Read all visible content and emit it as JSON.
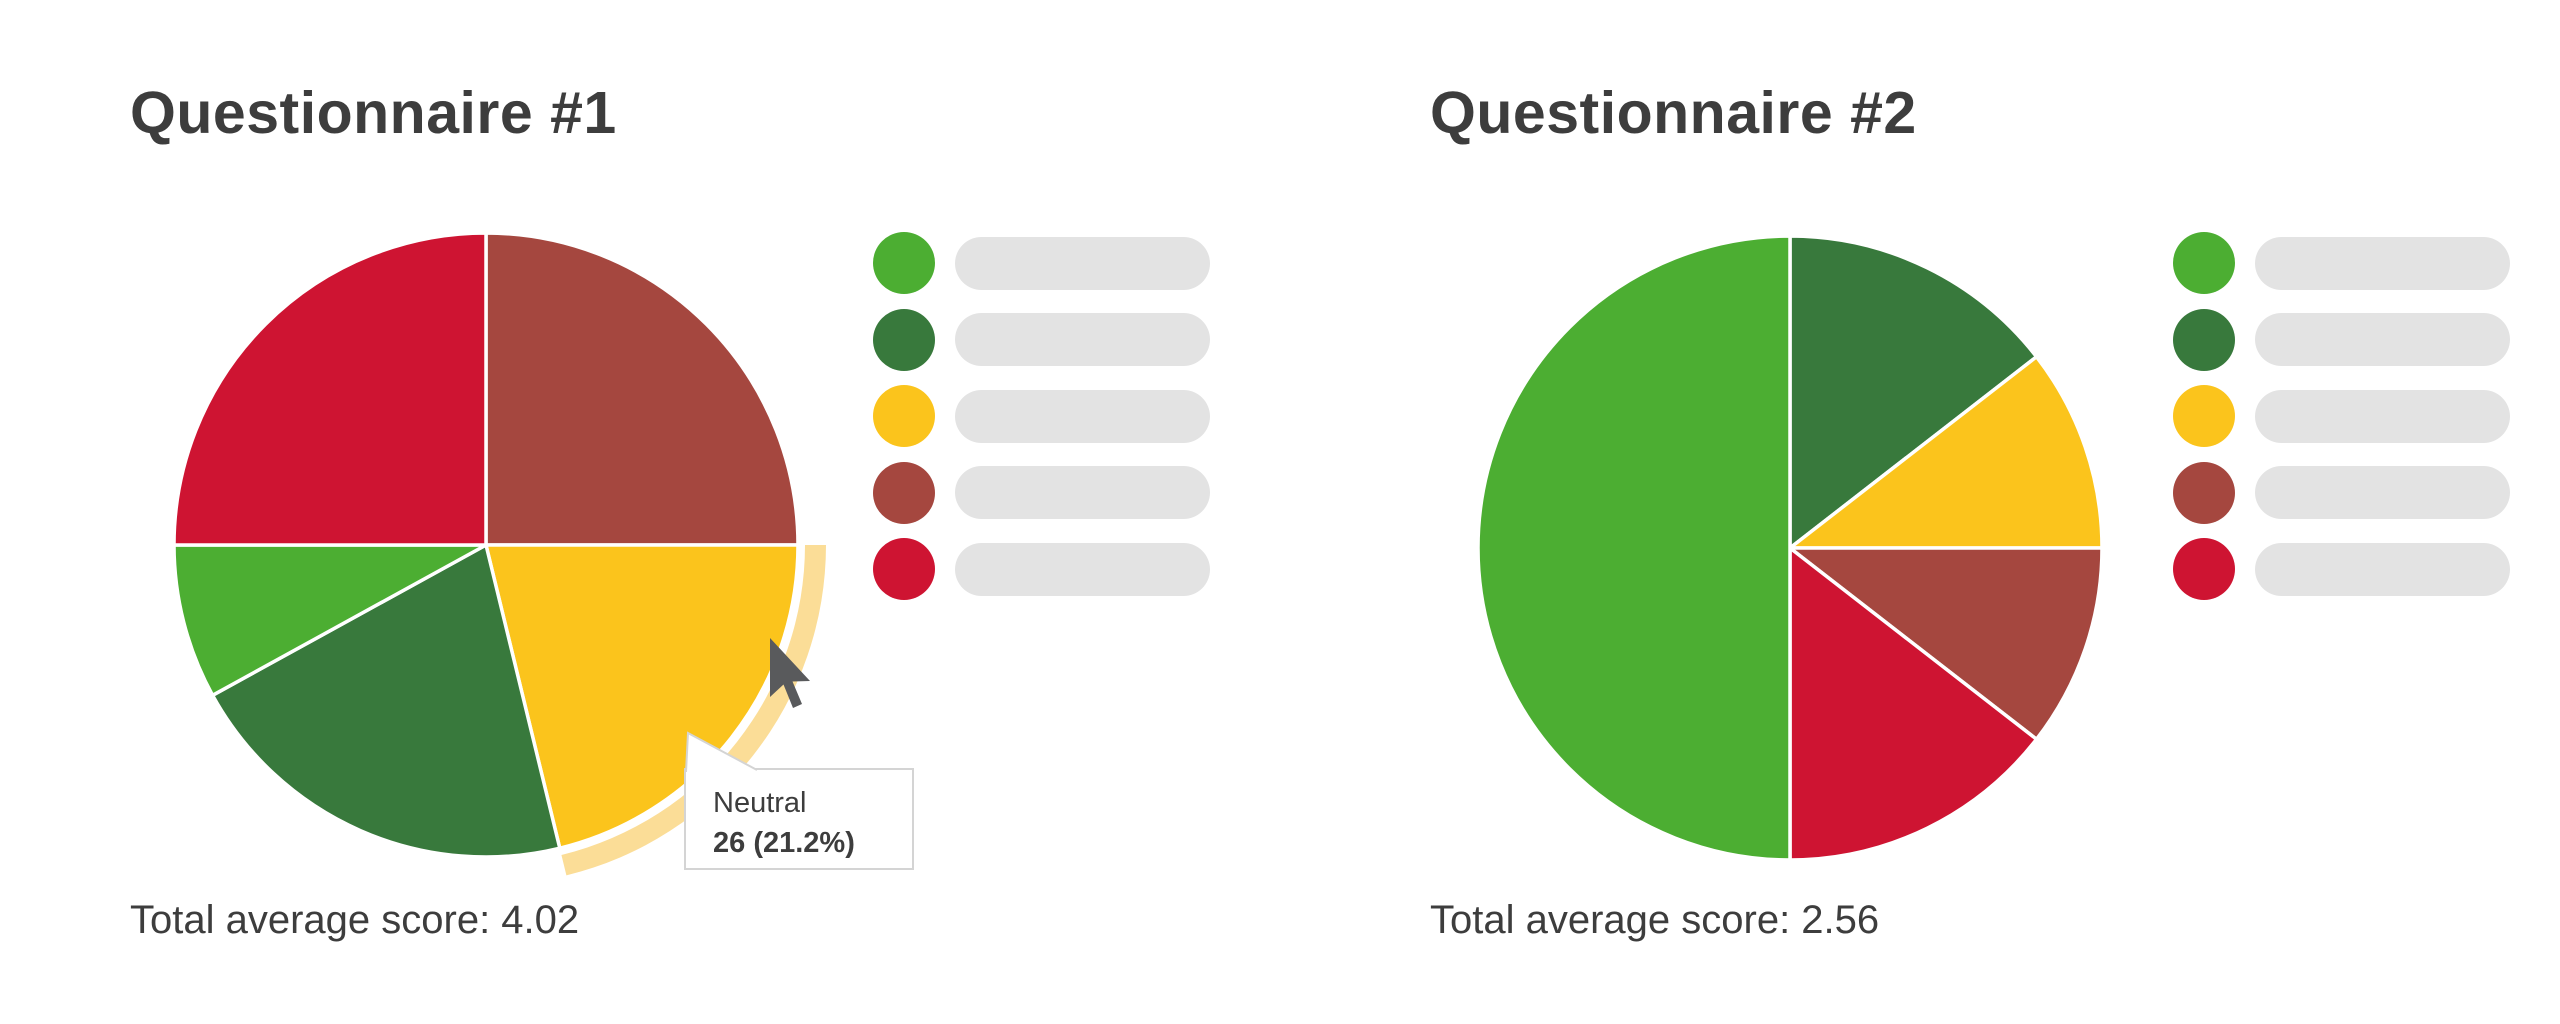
{
  "page": {
    "background": "#FFFFFF",
    "text_color": "#3D3D3D"
  },
  "palette": {
    "light_green": "#4CAE32",
    "dark_green": "#38793C",
    "yellow": "#FBC41C",
    "brown_red": "#A5473F",
    "red": "#CE1432",
    "highlight_halo": "#FBDD97",
    "legend_placeholder_gray": "#E3E3E3",
    "tooltip_border": "#D4D4D4",
    "pie_divider": "#FFFFFF",
    "cursor_gray": "#595A5C"
  },
  "icons": {
    "cursor": "mouse-pointer-arrow-icon"
  },
  "chart_data": [
    {
      "type": "pie",
      "title": "Questionnaire #1",
      "total_average_label": "Total average score: 4.02",
      "start_angle_deg": 0,
      "direction": "clockwise",
      "legend_position": "right",
      "legend": {
        "labels_are_placeholder_bars": true,
        "entries": [
          {
            "name": "light-green",
            "color": "#4CAE32",
            "label": ""
          },
          {
            "name": "dark-green",
            "color": "#38793C",
            "label": ""
          },
          {
            "name": "yellow",
            "color": "#FBC41C",
            "label": ""
          },
          {
            "name": "brown-red",
            "color": "#A5473F",
            "label": ""
          },
          {
            "name": "red",
            "color": "#CE1432",
            "label": ""
          }
        ]
      },
      "slices": [
        {
          "name": "brown-red",
          "color": "#A5473F",
          "percent": 25.0
        },
        {
          "name": "yellow",
          "color": "#FBC41C",
          "percent": 21.2,
          "highlighted": true,
          "halo_color": "#FBDD97",
          "tooltip": {
            "label": "Neutral",
            "value": "26 (21.2%)"
          }
        },
        {
          "name": "dark-green",
          "color": "#38793C",
          "percent": 20.8
        },
        {
          "name": "light-green",
          "color": "#4CAE32",
          "percent": 8.0
        },
        {
          "name": "red",
          "color": "#CE1432",
          "percent": 25.0
        }
      ]
    },
    {
      "type": "pie",
      "title": "Questionnaire #2",
      "total_average_label": "Total average score: 2.56",
      "start_angle_deg": 0,
      "direction": "clockwise",
      "legend_position": "right",
      "legend": {
        "labels_are_placeholder_bars": true,
        "entries": [
          {
            "name": "light-green",
            "color": "#4CAE32",
            "label": ""
          },
          {
            "name": "dark-green",
            "color": "#38793C",
            "label": ""
          },
          {
            "name": "yellow",
            "color": "#FBC41C",
            "label": ""
          },
          {
            "name": "brown-red",
            "color": "#A5473F",
            "label": ""
          },
          {
            "name": "red",
            "color": "#CE1432",
            "label": ""
          }
        ]
      },
      "slices": [
        {
          "name": "dark-green",
          "color": "#38793C",
          "percent": 14.5
        },
        {
          "name": "yellow",
          "color": "#FBC41C",
          "percent": 10.5
        },
        {
          "name": "brown-red",
          "color": "#A5473F",
          "percent": 10.5
        },
        {
          "name": "red",
          "color": "#CE1432",
          "percent": 14.5
        },
        {
          "name": "light-green",
          "color": "#4CAE32",
          "percent": 50.0
        }
      ]
    }
  ]
}
